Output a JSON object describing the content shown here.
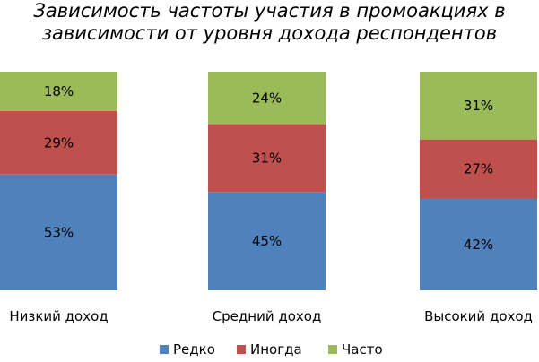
{
  "chart_data": {
    "type": "bar",
    "stacked": true,
    "percent_stacked": true,
    "title_lines": [
      "Зависимость частоты участия в промоакциях в",
      "зависимости от уровня  дохода респондентов"
    ],
    "categories": [
      "Низкий доход",
      "Средний доход",
      "Высокий доход"
    ],
    "series": [
      {
        "name": "Редко",
        "color": "#4F81BD",
        "values": [
          53,
          45,
          42
        ],
        "labels": [
          "53%",
          "45%",
          "42%"
        ]
      },
      {
        "name": "Иногда",
        "color": "#C0504D",
        "values": [
          29,
          31,
          27
        ],
        "labels": [
          "29%",
          "31%",
          "27%"
        ]
      },
      {
        "name": "Часто",
        "color": "#9BBB59",
        "values": [
          18,
          24,
          31
        ],
        "labels": [
          "18%",
          "24%",
          "31%"
        ]
      }
    ],
    "ylim": [
      0,
      100
    ],
    "grid": false,
    "legend_position": "bottom"
  }
}
